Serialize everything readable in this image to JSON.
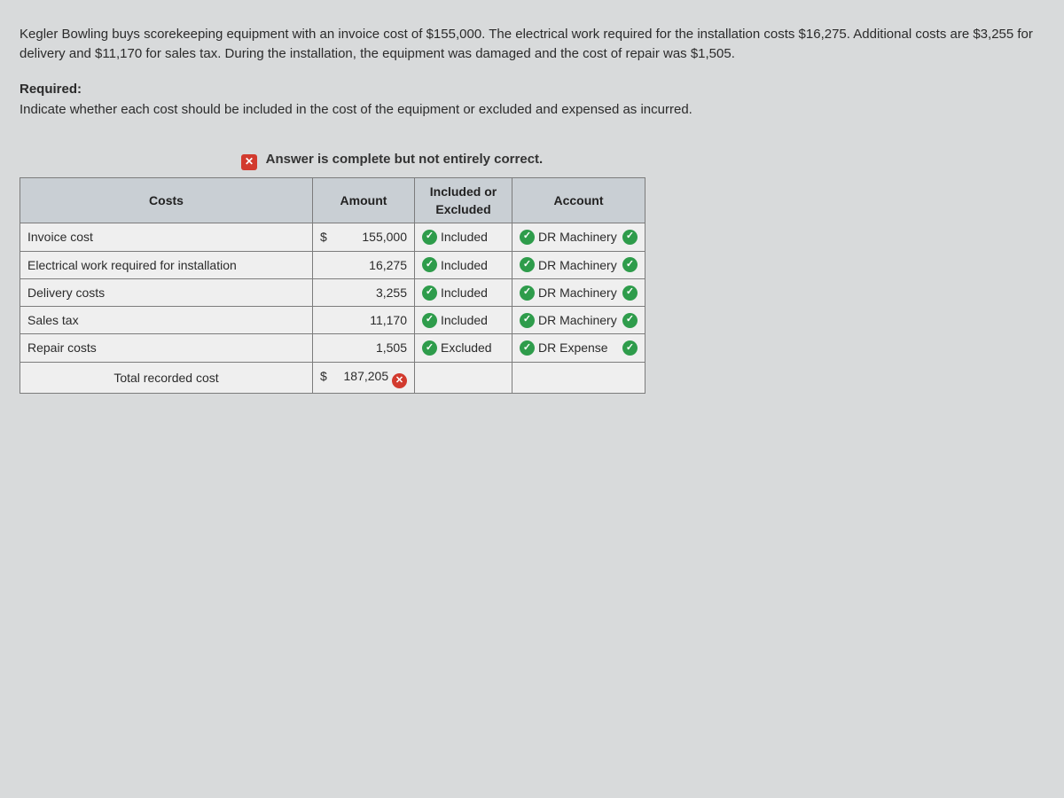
{
  "intro": "Kegler Bowling buys scorekeeping equipment with an invoice cost of $155,000. The electrical work required for the installation costs $16,275. Additional costs are $3,255 for delivery and $11,170 for sales tax. During the installation, the equipment was damaged and the cost of repair was $1,505.",
  "required_label": "Required:",
  "required_text": "Indicate whether each cost should be included in the cost of the equipment or excluded and expensed as incurred.",
  "feedback": "Answer is complete but not entirely correct.",
  "headers": {
    "costs": "Costs",
    "amount": "Amount",
    "included_excluded": "Included or Excluded",
    "account": "Account"
  },
  "rows": [
    {
      "cost": "Invoice cost",
      "prefix": "$",
      "amount": "155,000",
      "ie": "Included",
      "ie_correct": true,
      "account": "DR Machinery",
      "acct_correct": true
    },
    {
      "cost": "Electrical work required for installation",
      "prefix": "",
      "amount": "16,275",
      "ie": "Included",
      "ie_correct": true,
      "account": "DR Machinery",
      "acct_correct": true
    },
    {
      "cost": "Delivery costs",
      "prefix": "",
      "amount": "3,255",
      "ie": "Included",
      "ie_correct": true,
      "account": "DR Machinery",
      "acct_correct": true
    },
    {
      "cost": "Sales tax",
      "prefix": "",
      "amount": "11,170",
      "ie": "Included",
      "ie_correct": true,
      "account": "DR Machinery",
      "acct_correct": true
    },
    {
      "cost": "Repair costs",
      "prefix": "",
      "amount": "1,505",
      "ie": "Excluded",
      "ie_correct": true,
      "account": "DR Expense",
      "acct_correct": true
    }
  ],
  "total": {
    "label": "Total recorded cost",
    "prefix": "$",
    "amount": "187,205",
    "correct": false
  },
  "colors": {
    "bg": "#d8dadb",
    "header_bg": "#c9cfd4",
    "cell_bg": "#efefef",
    "border": "#7c7c7c",
    "correct": "#2e9c4b",
    "incorrect": "#d23a2e"
  },
  "icons": {
    "check": "✓",
    "x": "✕"
  }
}
